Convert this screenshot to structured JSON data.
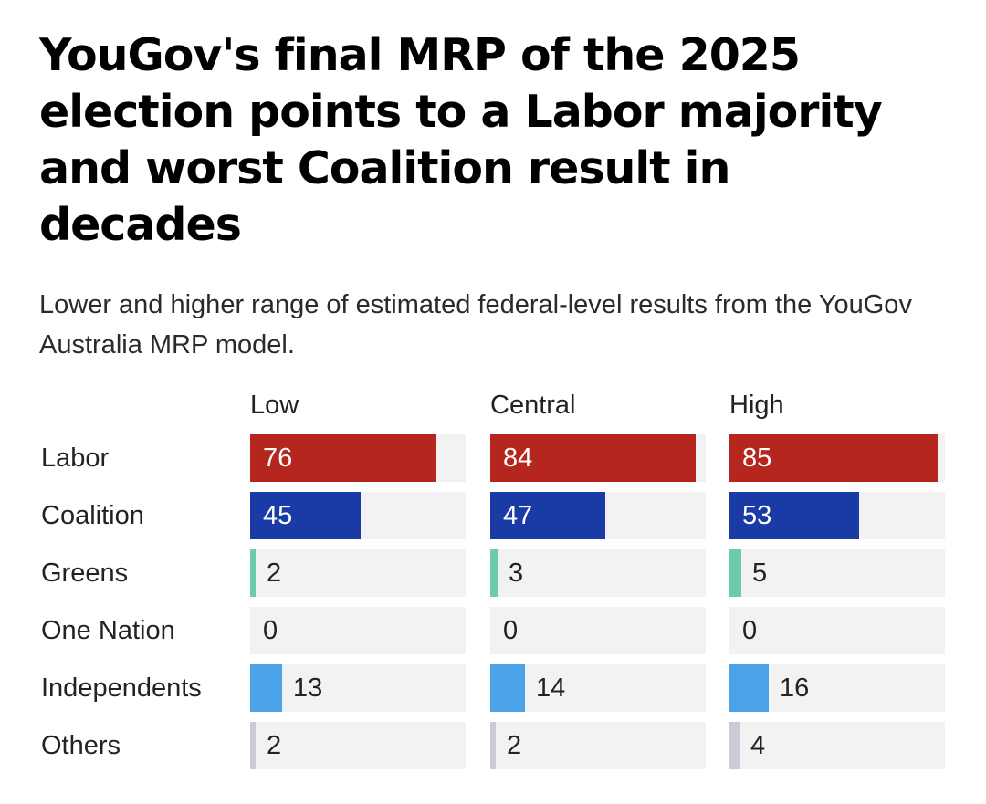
{
  "title": "YouGov's final MRP of the 2025 election points to a Labor majority and worst Coalition result in decades",
  "subtitle": "Lower and higher range of estimated federal-level results from the YouGov Australia MRP model.",
  "chart_data": {
    "type": "bar",
    "title": "YouGov's final MRP of the 2025 election points to a Labor majority and worst Coalition result in decades",
    "subtitle": "Lower and higher range of estimated federal-level results from the YouGov Australia MRP model.",
    "orientation": "horizontal",
    "layout": "small-multiples",
    "xlim": [
      0,
      88
    ],
    "categories": [
      "Labor",
      "Coalition",
      "Greens",
      "One Nation",
      "Independents",
      "Others"
    ],
    "colors": {
      "Labor": "#b5261e",
      "Coalition": "#1a3aa6",
      "Greens": "#6ccba8",
      "One Nation": "#f5a623",
      "Independents": "#4da3e8",
      "Others": "#c9ccd4"
    },
    "series": [
      {
        "name": "Low",
        "values": [
          76,
          45,
          2,
          0,
          13,
          2
        ]
      },
      {
        "name": "Central",
        "values": [
          84,
          47,
          3,
          0,
          14,
          2
        ]
      },
      {
        "name": "High",
        "values": [
          85,
          53,
          5,
          0,
          16,
          4
        ]
      }
    ]
  }
}
